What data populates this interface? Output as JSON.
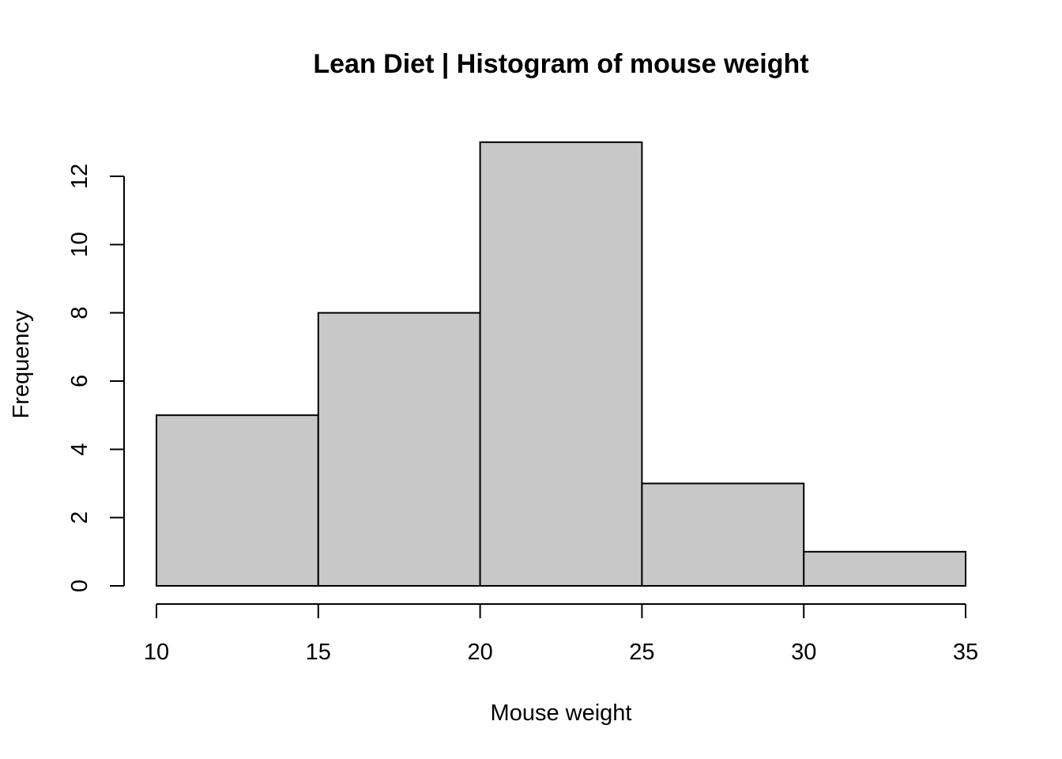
{
  "chart_data": {
    "type": "bar",
    "title": "Lean Diet | Histogram of mouse weight",
    "xlabel": "Mouse weight",
    "ylabel": "Frequency",
    "bins": [
      {
        "x0": 10,
        "x1": 15,
        "value": 5
      },
      {
        "x0": 15,
        "x1": 20,
        "value": 8
      },
      {
        "x0": 20,
        "x1": 25,
        "value": 13
      },
      {
        "x0": 25,
        "x1": 30,
        "value": 3
      },
      {
        "x0": 30,
        "x1": 35,
        "value": 1
      }
    ],
    "xlim": [
      10,
      35
    ],
    "ylim": [
      0,
      13
    ],
    "x_ticks": [
      "10",
      "15",
      "20",
      "25",
      "30",
      "35"
    ],
    "y_ticks": [
      "0",
      "2",
      "4",
      "6",
      "8",
      "10",
      "12"
    ],
    "bar_color": "#c8c8c8",
    "grid": false,
    "legend": false
  }
}
